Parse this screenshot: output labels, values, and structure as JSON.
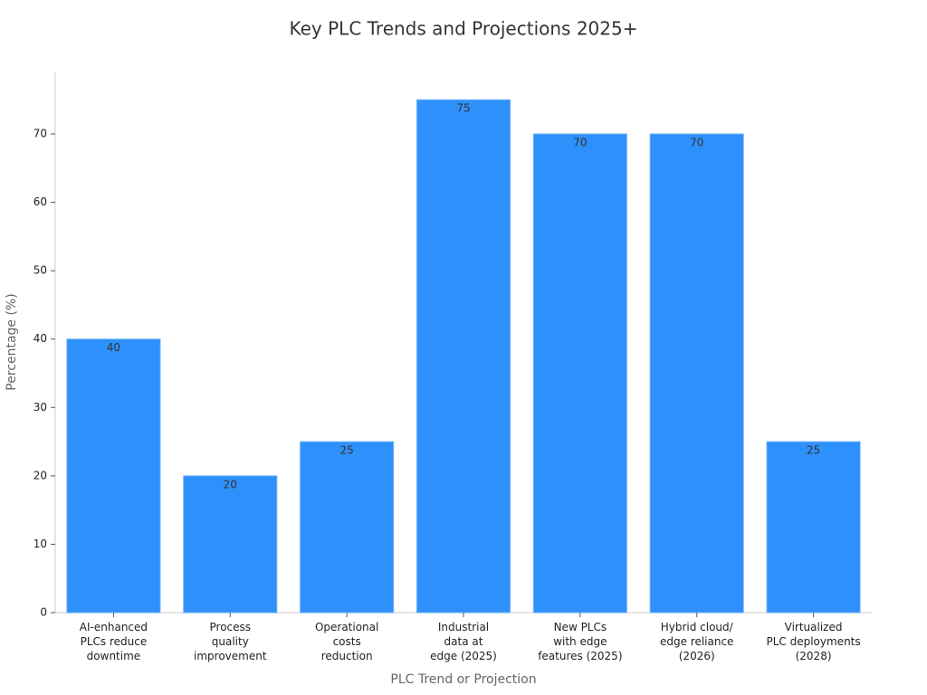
{
  "chart_data": {
    "type": "bar",
    "title": "Key PLC Trends and Projections 2025+",
    "x_label": "PLC Trend or Projection",
    "y_label": "Percentage (%)",
    "categories": [
      [
        "AI-enhanced",
        "PLCs reduce",
        "downtime"
      ],
      [
        "Process",
        "quality",
        "improvement"
      ],
      [
        "Operational",
        "costs",
        "reduction"
      ],
      [
        "Industrial",
        "data at",
        "edge (2025)"
      ],
      [
        "New PLCs",
        "with edge",
        "features (2025)"
      ],
      [
        "Hybrid cloud/",
        "edge reliance",
        "(2026)"
      ],
      [
        "Virtualized",
        "PLC deployments",
        "(2028)"
      ]
    ],
    "values": [
      40,
      20,
      25,
      75,
      70,
      70,
      25
    ],
    "color": "#2e90fa",
    "ylim": [
      0,
      79
    ],
    "yticks": [
      0,
      10,
      20,
      30,
      40,
      50,
      60,
      70
    ],
    "grid": false
  }
}
